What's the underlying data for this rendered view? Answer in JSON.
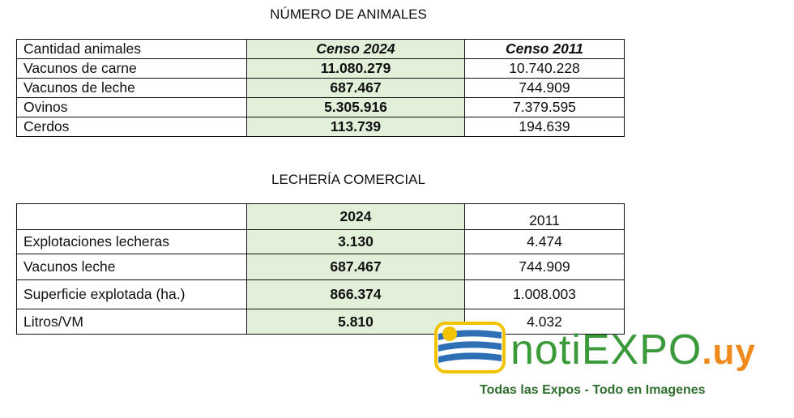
{
  "tables": [
    {
      "title": "NÚMERO DE ANIMALES",
      "header": [
        "Cantidad animales",
        "Censo 2024",
        "Censo 2011"
      ],
      "rows": [
        [
          "Vacunos de carne",
          "11.080.279",
          "10.740.228"
        ],
        [
          "Vacunos de leche",
          "687.467",
          "744.909"
        ],
        [
          "Ovinos",
          "5.305.916",
          "7.379.595"
        ],
        [
          "Cerdos",
          "113.739",
          "194.639"
        ]
      ]
    },
    {
      "title": "LECHERÍA COMERCIAL",
      "header": [
        "2024",
        "2011"
      ],
      "rows": [
        [
          "Explotaciones lecheras",
          "3.130",
          "4.474"
        ],
        [
          "Vacunos leche",
          "687.467",
          "744.909"
        ],
        [
          "Superficie explotada (ha.)",
          "866.374",
          "1.008.003"
        ],
        [
          "Litros/VM",
          "5.810",
          "4.032"
        ]
      ]
    }
  ],
  "logo": {
    "name": "notiEXPO",
    "domain": ".uy",
    "tagline": "Todas las Expos - Todo en Imagenes"
  }
}
